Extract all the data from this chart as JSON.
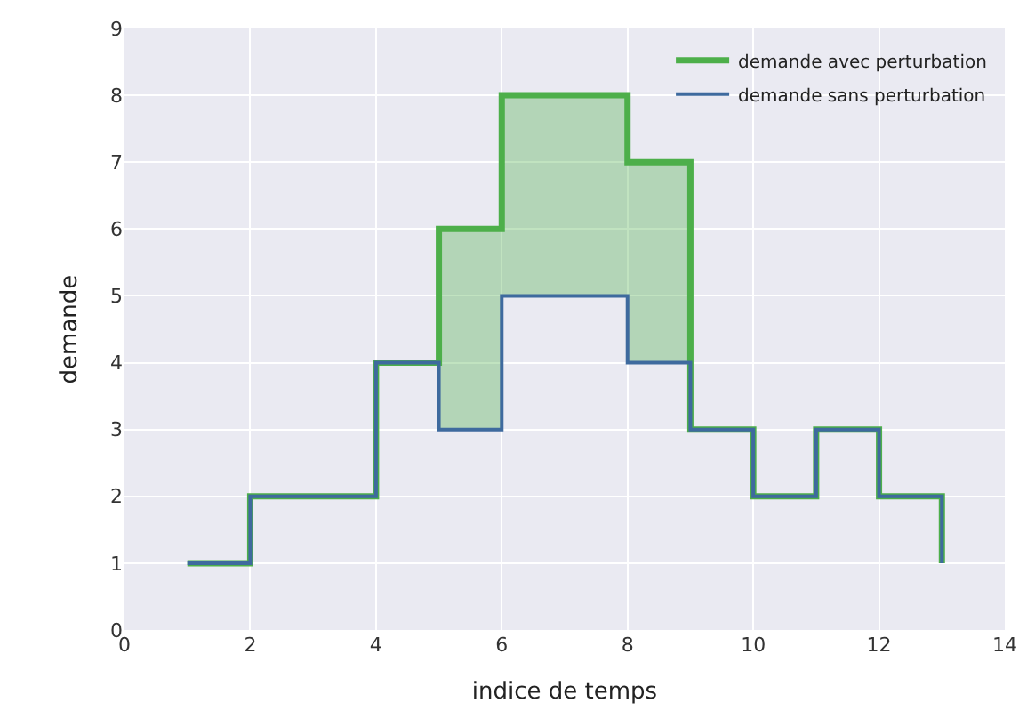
{
  "chart_data": {
    "type": "step",
    "xlabel": "indice de temps",
    "ylabel": "demande",
    "x": [
      1,
      2,
      3,
      4,
      5,
      6,
      7,
      8,
      9,
      10,
      11,
      12,
      13
    ],
    "series": [
      {
        "name": "demande avec perturbation",
        "color": "#4daf4a",
        "values": [
          1,
          2,
          2,
          4,
          6,
          8,
          8,
          7,
          3,
          2,
          3,
          2,
          1
        ],
        "lower": [
          1,
          2,
          2,
          4,
          3,
          5,
          5,
          4,
          3,
          2,
          3,
          2,
          1
        ],
        "upper": [
          1,
          2,
          2,
          4,
          6,
          8,
          8,
          7,
          3,
          2,
          3,
          2,
          1
        ]
      },
      {
        "name": "demande sans perturbation",
        "color": "#3e6a9e",
        "values": [
          1,
          2,
          2,
          4,
          3,
          5,
          5,
          4,
          3,
          2,
          3,
          2,
          1
        ]
      }
    ],
    "xlim": [
      0,
      14
    ],
    "xticks": [
      0,
      2,
      4,
      6,
      8,
      10,
      12,
      14
    ],
    "ylim": [
      0,
      9
    ],
    "yticks": [
      0,
      1,
      2,
      3,
      4,
      5,
      6,
      7,
      8,
      9
    ],
    "grid": true,
    "legend": "top right",
    "marker": "none",
    "line_style": "solid"
  }
}
